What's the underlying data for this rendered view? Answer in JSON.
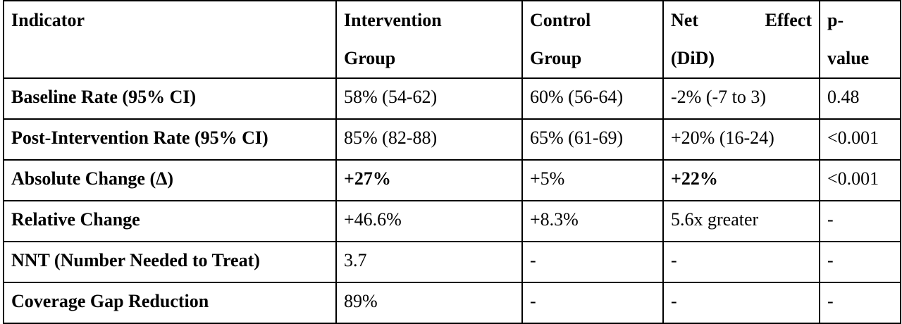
{
  "table": {
    "headers": {
      "indicator_line1": "Indicator",
      "intervention_line1": "Intervention",
      "intervention_line2": "Group",
      "control_line1": "Control",
      "control_line2": "Group",
      "net_word1": "Net",
      "net_word2": "Effect",
      "net_line2": "(DiD)",
      "p_line1": "p-",
      "p_line2": "value"
    },
    "rows": [
      {
        "indicator": "Baseline Rate (95% CI)",
        "intervention": "58% (54-62)",
        "control": "60% (56-64)",
        "net_effect": "-2% (-7 to 3)",
        "p_value": "0.48"
      },
      {
        "indicator": "Post-Intervention Rate (95% CI)",
        "intervention": "85% (82-88)",
        "control": "65% (61-69)",
        "net_effect": "+20% (16-24)",
        "p_value": "<0.001"
      },
      {
        "indicator": "Absolute Change (Δ)",
        "intervention": "+27%",
        "control": "+5%",
        "net_effect": "+22%",
        "p_value": "<0.001"
      },
      {
        "indicator": "Relative Change",
        "intervention": "+46.6%",
        "control": "+8.3%",
        "net_effect": "5.6x greater",
        "p_value": "-"
      },
      {
        "indicator": "NNT (Number Needed to Treat)",
        "intervention": "3.7",
        "control": "-",
        "net_effect": "-",
        "p_value": "-"
      },
      {
        "indicator": "Coverage Gap Reduction",
        "intervention": "89%",
        "control": "-",
        "net_effect": "-",
        "p_value": "-"
      }
    ]
  }
}
